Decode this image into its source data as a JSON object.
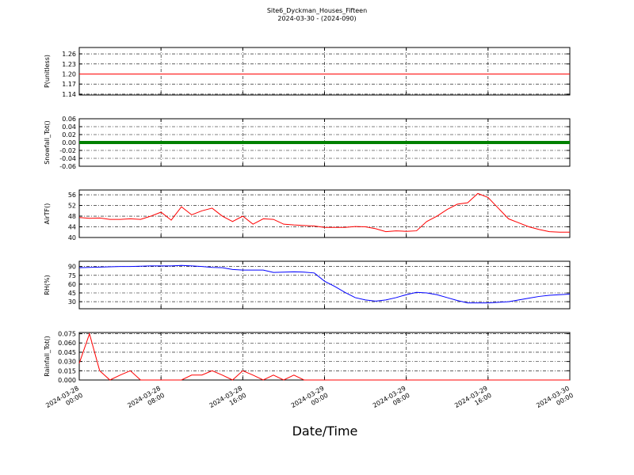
{
  "title": "Site6_Dyckman_Houses_Fifteen",
  "subtitle": "2024-03-30 - (2024-090)",
  "x_label": "Date/Time",
  "xlim": [
    "2024-03-28 00:00",
    "2024-03-30 00:00"
  ],
  "xticks": [
    "2024-03-28 00:00",
    "2024-03-28 08:00",
    "2024-03-28 16:00",
    "2024-03-29 00:00",
    "2024-03-29 08:00",
    "2024-03-29 16:00",
    "2024-03-30 00:00"
  ],
  "x": [
    "2024-03-28 00:00",
    "2024-03-28 01:00",
    "2024-03-28 02:00",
    "2024-03-28 03:00",
    "2024-03-28 04:00",
    "2024-03-28 05:00",
    "2024-03-28 06:00",
    "2024-03-28 07:00",
    "2024-03-28 08:00",
    "2024-03-28 09:00",
    "2024-03-28 10:00",
    "2024-03-28 11:00",
    "2024-03-28 12:00",
    "2024-03-28 13:00",
    "2024-03-28 14:00",
    "2024-03-28 15:00",
    "2024-03-28 16:00",
    "2024-03-28 17:00",
    "2024-03-28 18:00",
    "2024-03-28 19:00",
    "2024-03-28 20:00",
    "2024-03-28 21:00",
    "2024-03-28 22:00",
    "2024-03-28 23:00",
    "2024-03-29 00:00",
    "2024-03-29 01:00",
    "2024-03-29 02:00",
    "2024-03-29 03:00",
    "2024-03-29 04:00",
    "2024-03-29 05:00",
    "2024-03-29 06:00",
    "2024-03-29 07:00",
    "2024-03-29 08:00",
    "2024-03-29 09:00",
    "2024-03-29 10:00",
    "2024-03-29 11:00",
    "2024-03-29 12:00",
    "2024-03-29 13:00",
    "2024-03-29 14:00",
    "2024-03-29 15:00",
    "2024-03-29 16:00",
    "2024-03-29 17:00",
    "2024-03-29 18:00",
    "2024-03-29 19:00",
    "2024-03-29 20:00",
    "2024-03-29 21:00",
    "2024-03-29 22:00",
    "2024-03-29 23:00",
    "2024-03-30 00:00"
  ],
  "chart_data": [
    {
      "type": "line",
      "y_label": "P(unitless)",
      "grid": true,
      "ylim": [
        1.1375,
        1.279
      ],
      "yticks": [
        1.14,
        1.17,
        {
          "value": 1.2,
          "label": "1.20"
        },
        1.23,
        1.26
      ],
      "series": [
        {
          "color": "#ff0000",
          "width": 1,
          "values": [
            1.2,
            1.2,
            1.2,
            1.2,
            1.2,
            1.2,
            1.2,
            1.2,
            1.2,
            1.2,
            1.2,
            1.2,
            1.2,
            1.2,
            1.2,
            1.2,
            1.2,
            1.2,
            1.2,
            1.2,
            1.2,
            1.2,
            1.2,
            1.2,
            1.2,
            1.2,
            1.2,
            1.2,
            1.2,
            1.2,
            1.2,
            1.2,
            1.2,
            1.2,
            1.2,
            1.2,
            1.2,
            1.2,
            1.2,
            1.2,
            1.2,
            1.2,
            1.2,
            1.2,
            1.2,
            1.2,
            1.2,
            1.2,
            1.2
          ]
        }
      ]
    },
    {
      "type": "line",
      "y_label": "Snowfall_Tot()",
      "grid": true,
      "ylim": [
        -0.06,
        0.06
      ],
      "yticks": [
        -0.06,
        -0.04,
        -0.02,
        {
          "value": 0,
          "label": "0.00"
        },
        0.02,
        0.04,
        0.06
      ],
      "series": [
        {
          "color": "#008000",
          "width": 4,
          "values": [
            0,
            0,
            0,
            0,
            0,
            0,
            0,
            0,
            0,
            0,
            0,
            0,
            0,
            0,
            0,
            0,
            0,
            0,
            0,
            0,
            0,
            0,
            0,
            0,
            0,
            0,
            0,
            0,
            0,
            0,
            0,
            0,
            0,
            0,
            0,
            0,
            0,
            0,
            0,
            0,
            0,
            0,
            0,
            0,
            0,
            0,
            0,
            0,
            0
          ]
        }
      ]
    },
    {
      "type": "line",
      "y_label": "AirTF()",
      "grid": true,
      "ylim": [
        40,
        57.8
      ],
      "yticks": [
        40,
        44,
        48,
        52,
        56
      ],
      "series": [
        {
          "color": "#ff0000",
          "width": 1,
          "values": [
            47.5,
            47.2,
            47.3,
            46.8,
            46.8,
            47,
            46.8,
            48,
            49.5,
            46.5,
            51.5,
            48.5,
            50,
            51,
            48,
            46,
            48,
            45,
            47,
            46.8,
            45,
            44.7,
            44.5,
            44.3,
            43.8,
            43.8,
            43.8,
            44.1,
            44,
            43.3,
            42.2,
            42.5,
            42.3,
            42.5,
            46,
            48,
            50.5,
            52.5,
            53,
            56.5,
            55,
            51,
            47,
            45.5,
            44,
            43,
            42.2,
            42,
            42
          ]
        }
      ]
    },
    {
      "type": "line",
      "y_label": "RH(%)",
      "grid": true,
      "ylim": [
        18,
        99
      ],
      "yticks": [
        30,
        45,
        60,
        75,
        90
      ],
      "series": [
        {
          "color": "#0000ff",
          "width": 1,
          "values": [
            88,
            88.5,
            89,
            89.5,
            90,
            90,
            90.5,
            91,
            91,
            91,
            92,
            91,
            90,
            88.5,
            88,
            85,
            84,
            84,
            84,
            80,
            80.5,
            81,
            80.5,
            79,
            65,
            56,
            46,
            37,
            33,
            31,
            33,
            37,
            42,
            46,
            45,
            42,
            37,
            32,
            28,
            28,
            28,
            29,
            30,
            33,
            36,
            39,
            41,
            42,
            43
          ]
        }
      ]
    },
    {
      "type": "line",
      "y_label": "Rainfall_Tot()",
      "grid": true,
      "ylim": [
        0,
        0.077
      ],
      "yticks": [
        {
          "value": 0,
          "label": "0.000"
        },
        0.015,
        {
          "value": 0.03,
          "label": "0.030"
        },
        0.045,
        {
          "value": 0.06,
          "label": "0.060"
        },
        0.075
      ],
      "series": [
        {
          "color": "#ff0000",
          "width": 1,
          "values": [
            0.027,
            0.075,
            0.015,
            0,
            0.008,
            0.015,
            0,
            0,
            0,
            0,
            0,
            0.008,
            0.008,
            0.015,
            0.008,
            0,
            0.015,
            0.008,
            0,
            0.008,
            0,
            0.008,
            0,
            0,
            0,
            0,
            0,
            0,
            0,
            0,
            0,
            0,
            0,
            0,
            0,
            0,
            0,
            0,
            0,
            0,
            0,
            0,
            0,
            0,
            0,
            0,
            0,
            0,
            0
          ]
        }
      ]
    }
  ]
}
